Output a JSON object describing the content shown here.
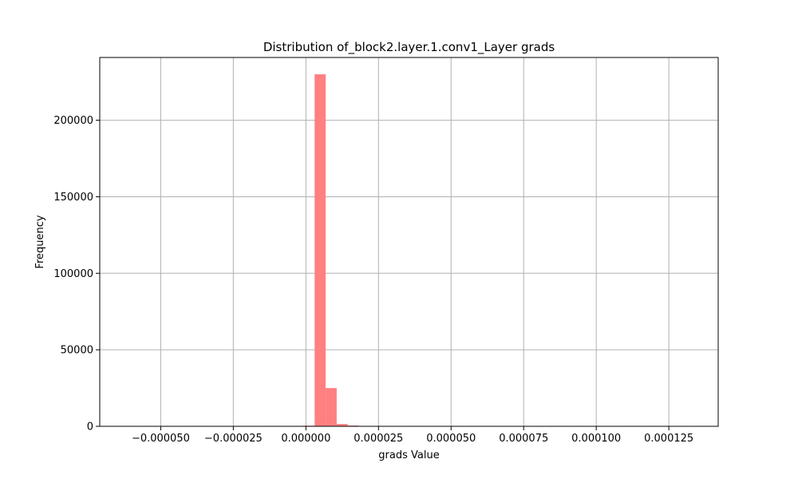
{
  "chart_data": {
    "type": "bar",
    "title": "Distribution of_block2.layer.1.conv1_Layer grads",
    "xlabel": "grads Value",
    "ylabel": "Frequency",
    "xlim": [
      -7.1e-05,
      0.000142
    ],
    "ylim": [
      0,
      241000
    ],
    "grid": true,
    "bar_color": "#ff8080",
    "x_ticks": [
      {
        "value": -5e-05,
        "label": "−0.000050"
      },
      {
        "value": -2.5e-05,
        "label": "−0.000025"
      },
      {
        "value": 0.0,
        "label": "0.000000"
      },
      {
        "value": 2.5e-05,
        "label": "0.000025"
      },
      {
        "value": 5e-05,
        "label": "0.000050"
      },
      {
        "value": 7.5e-05,
        "label": "0.000075"
      },
      {
        "value": 0.0001,
        "label": "0.000100"
      },
      {
        "value": 0.000125,
        "label": "0.000125"
      }
    ],
    "y_ticks": [
      {
        "value": 0,
        "label": "0"
      },
      {
        "value": 50000,
        "label": "50000"
      },
      {
        "value": 100000,
        "label": "100000"
      },
      {
        "value": 150000,
        "label": "150000"
      },
      {
        "value": 200000,
        "label": "200000"
      }
    ],
    "bin_start": -6.16e-05,
    "bin_width": 3.8e-06,
    "values": [
      0,
      0,
      0,
      0,
      0,
      0,
      0,
      0,
      0,
      0,
      0,
      0,
      0,
      0,
      0,
      0,
      400,
      230000,
      25000,
      1500,
      500,
      100,
      30,
      10,
      5,
      0,
      0,
      0,
      0,
      0,
      0,
      0,
      0,
      0,
      0,
      0,
      0,
      0,
      0,
      0,
      0,
      0,
      0,
      0,
      0,
      0,
      0,
      0,
      0,
      0
    ]
  }
}
